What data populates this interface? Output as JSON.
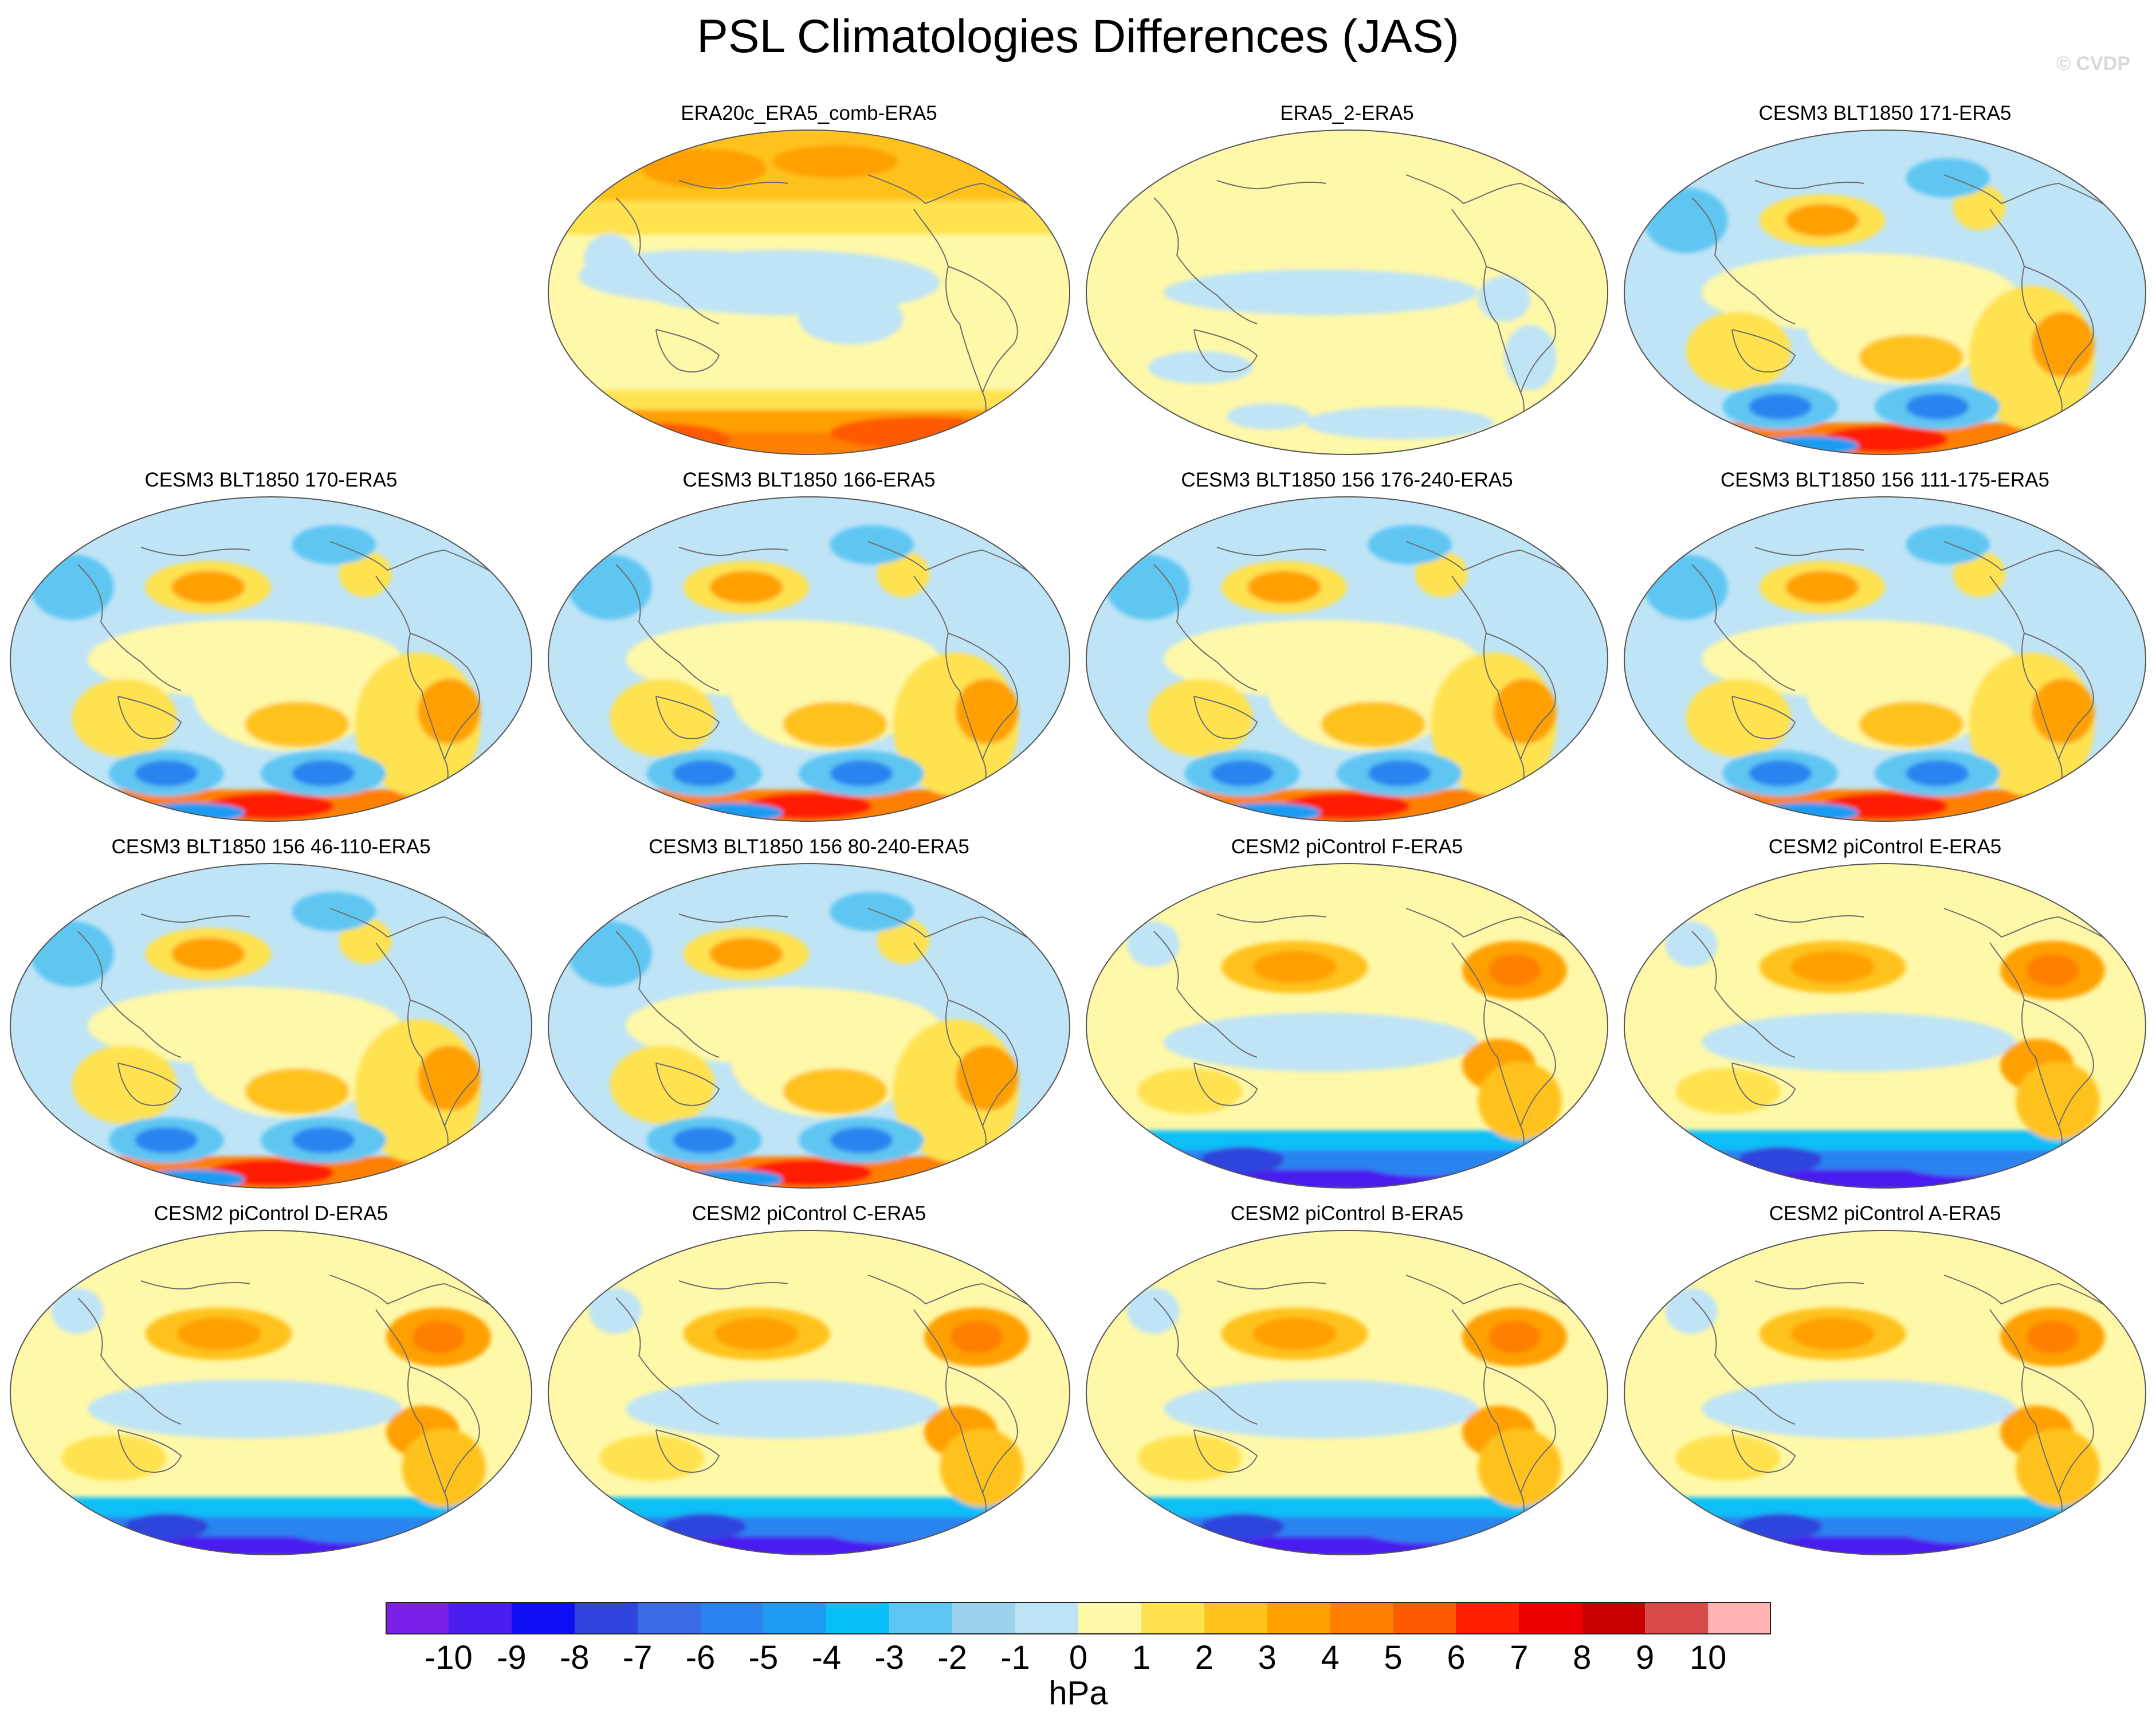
{
  "title": "PSL Climatologies Differences (JAS)",
  "credit": "© CVDP",
  "units": "hPa",
  "colorbar": {
    "labels": [
      "-10",
      "-9",
      "-8",
      "-7",
      "-6",
      "-5",
      "-4",
      "-3",
      "-2",
      "-1",
      "0",
      "1",
      "2",
      "3",
      "4",
      "5",
      "6",
      "7",
      "8",
      "9",
      "10"
    ],
    "colors": [
      "#7b20ea",
      "#4a1df0",
      "#0e0ef5",
      "#2f45dd",
      "#3a6ae6",
      "#2a84f0",
      "#1e9bf2",
      "#08bff7",
      "#5ec6f2",
      "#9bd3ee",
      "#bfe4f6",
      "#fff8a8",
      "#ffe24f",
      "#ffc21a",
      "#ffa000",
      "#ff7f00",
      "#ff5a00",
      "#ff1e00",
      "#ef0000",
      "#c80000",
      "#d94b4b",
      "#ffb3b3"
    ]
  },
  "panels": [
    {
      "title": "ERA20c_ERA5_comb-ERA5",
      "pattern": "era20c"
    },
    {
      "title": "ERA5_2-ERA5",
      "pattern": "era5_2"
    },
    {
      "title": "CESM3 BLT1850 171-ERA5",
      "pattern": "cesm3"
    },
    {
      "title": "CESM3 BLT1850 170-ERA5",
      "pattern": "cesm3"
    },
    {
      "title": "CESM3 BLT1850 166-ERA5",
      "pattern": "cesm3"
    },
    {
      "title": "CESM3 BLT1850 156 176-240-ERA5",
      "pattern": "cesm3"
    },
    {
      "title": "CESM3 BLT1850 156 111-175-ERA5",
      "pattern": "cesm3"
    },
    {
      "title": "CESM3 BLT1850 156 46-110-ERA5",
      "pattern": "cesm3"
    },
    {
      "title": "CESM3 BLT1850 156 80-240-ERA5",
      "pattern": "cesm3"
    },
    {
      "title": "CESM2 piControl F-ERA5",
      "pattern": "cesm2"
    },
    {
      "title": "CESM2 piControl E-ERA5",
      "pattern": "cesm2"
    },
    {
      "title": "CESM2 piControl D-ERA5",
      "pattern": "cesm2"
    },
    {
      "title": "CESM2 piControl C-ERA5",
      "pattern": "cesm2"
    },
    {
      "title": "CESM2 piControl B-ERA5",
      "pattern": "cesm2"
    },
    {
      "title": "CESM2 piControl A-ERA5",
      "pattern": "cesm2"
    }
  ]
}
